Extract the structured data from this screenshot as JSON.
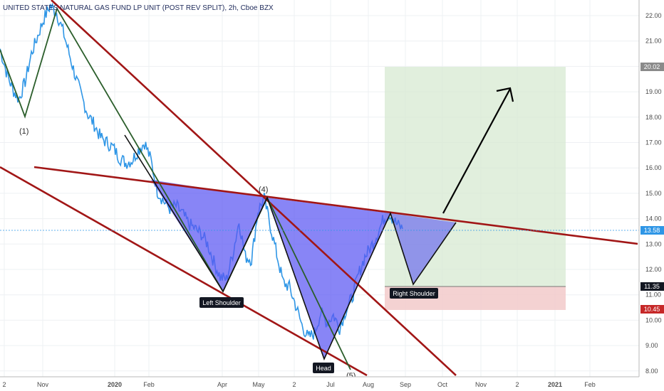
{
  "chart_data": {
    "type": "line",
    "title": "UNITED STATES NATURAL GAS FUND LP UNIT (POST REV SPLIT), 2h, Cboe BZX",
    "xlabel": "",
    "ylabel": "",
    "ylim": [
      8,
      22.5
    ],
    "grid": true,
    "y_ticks": [
      "8.00",
      "9.00",
      "10.00",
      "11.00",
      "12.00",
      "13.00",
      "14.00",
      "15.00",
      "16.00",
      "17.00",
      "18.00",
      "19.00",
      "20.00",
      "21.00",
      "22.00"
    ],
    "x_ticks": [
      "2",
      "Nov",
      "2020",
      "Feb",
      "Apr",
      "May",
      "2",
      "Jul",
      "Aug",
      "Sep",
      "Oct",
      "Nov",
      "2",
      "2021",
      "Feb"
    ],
    "series": [
      {
        "values": [
          20.7,
          19.8,
          19.1,
          18.7,
          19.4,
          20.5,
          21.2,
          21.9,
          22.4,
          22.1,
          21.4,
          20.5,
          19.6,
          18.8,
          18.1,
          17.7,
          17.2,
          17.0,
          16.8,
          16.4,
          16.2,
          16.3,
          16.7,
          17.0,
          16.3,
          15.1,
          14.7,
          14.4,
          14.5,
          14.2,
          13.8,
          13.6,
          13.4,
          13.0,
          12.3,
          11.7,
          11.6,
          12.6,
          13.9,
          12.5,
          12.4,
          14.3,
          14.8,
          13.7,
          12.6,
          11.5,
          11.3,
          10.6,
          9.8,
          9.3,
          9.5,
          10.3,
          9.9,
          10.2,
          9.7,
          10.4,
          10.9,
          11.8,
          12.5,
          12.9,
          13.4,
          14.0,
          14.2,
          13.8,
          13.6
        ]
      }
    ],
    "price_scale_marks": [
      "20.02",
      "13.58",
      "11.35",
      "10.45"
    ],
    "annotations": [
      {
        "label": "(1)"
      },
      {
        "label": "(4)"
      },
      {
        "label": "(5)"
      },
      {
        "label": "Left Shoulder"
      },
      {
        "label": "Head"
      },
      {
        "label": "Right Shoulder"
      }
    ]
  }
}
